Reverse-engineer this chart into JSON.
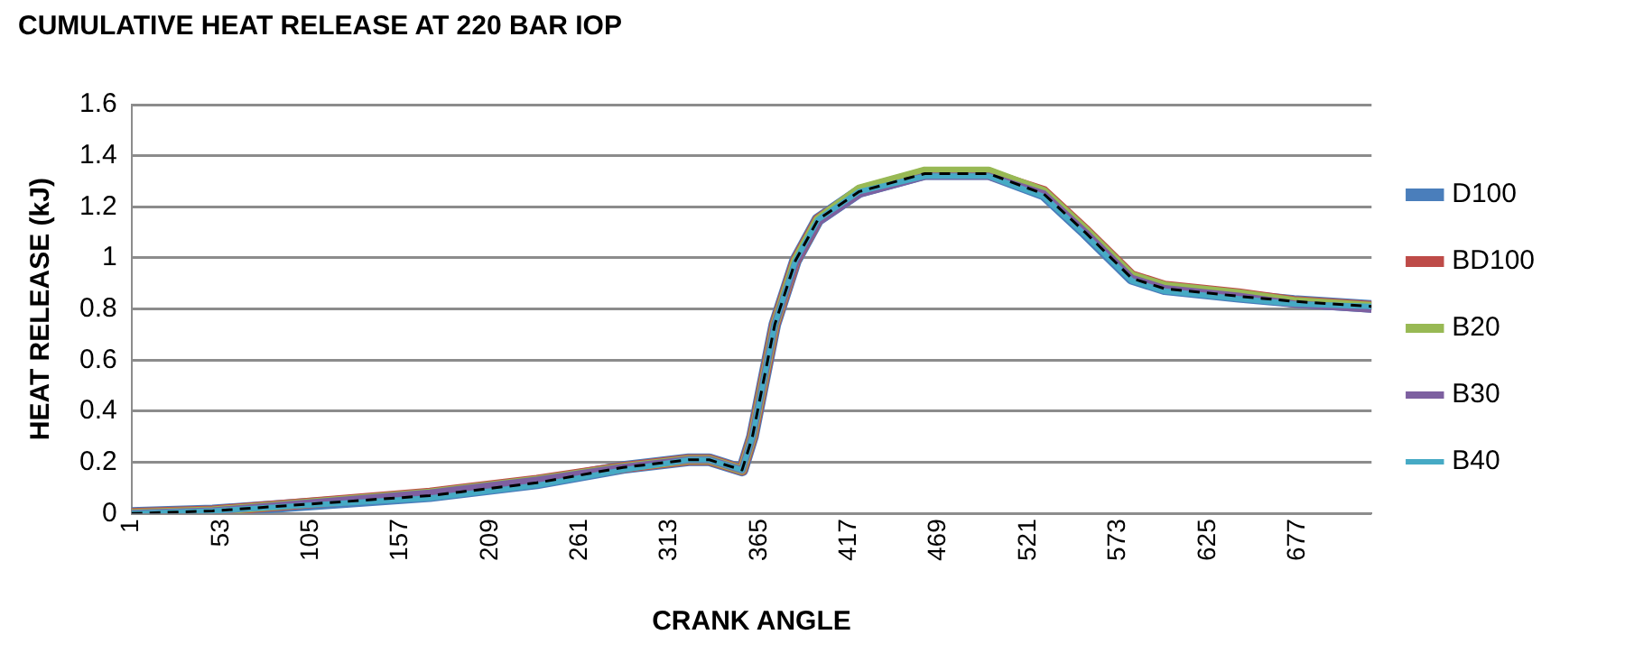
{
  "chart_data": {
    "type": "line",
    "title": "CUMULATIVE HEAT RELEASE AT 220 BAR IOP",
    "xlabel": "CRANK ANGLE",
    "ylabel": "HEAT RELEASE (kJ)",
    "x": [
      1,
      48,
      174,
      236,
      286,
      324,
      336,
      355,
      361,
      374,
      386,
      399,
      423,
      461,
      498,
      530,
      554,
      581,
      600,
      643,
      675,
      720
    ],
    "xlim": [
      1,
      720
    ],
    "xticks": [
      1,
      53,
      105,
      157,
      209,
      261,
      313,
      365,
      417,
      469,
      521,
      573,
      625,
      677
    ],
    "ylim": [
      0,
      1.6
    ],
    "yticks": [
      0,
      0.2,
      0.4,
      0.6,
      0.8,
      1,
      1.2,
      1.4,
      1.6
    ],
    "grid": "y",
    "legend": "right",
    "marker": "none",
    "series": [
      {
        "name": "D100",
        "color": "#4a7ebb",
        "values": [
          0,
          0.01,
          0.07,
          0.12,
          0.18,
          0.21,
          0.21,
          0.17,
          0.3,
          0.74,
          0.99,
          1.15,
          1.26,
          1.33,
          1.33,
          1.25,
          1.1,
          0.92,
          0.88,
          0.85,
          0.83,
          0.81
        ]
      },
      {
        "name": "BD100",
        "color": "#be4b48",
        "values": [
          0,
          0.01,
          0.08,
          0.13,
          0.18,
          0.21,
          0.21,
          0.17,
          0.3,
          0.74,
          0.99,
          1.15,
          1.26,
          1.33,
          1.33,
          1.26,
          1.11,
          0.93,
          0.89,
          0.86,
          0.83,
          0.81
        ]
      },
      {
        "name": "B20",
        "color": "#98b954",
        "values": [
          0,
          0.01,
          0.08,
          0.13,
          0.18,
          0.21,
          0.21,
          0.17,
          0.3,
          0.74,
          0.99,
          1.15,
          1.27,
          1.34,
          1.34,
          1.26,
          1.11,
          0.93,
          0.89,
          0.86,
          0.83,
          0.81
        ]
      },
      {
        "name": "B30",
        "color": "#7d60a0",
        "values": [
          0,
          0.01,
          0.08,
          0.13,
          0.18,
          0.21,
          0.21,
          0.17,
          0.3,
          0.74,
          0.98,
          1.14,
          1.25,
          1.32,
          1.32,
          1.25,
          1.1,
          0.92,
          0.88,
          0.85,
          0.82,
          0.8
        ]
      },
      {
        "name": "B40",
        "color": "#46aac5",
        "values": [
          0,
          0.01,
          0.06,
          0.11,
          0.17,
          0.21,
          0.21,
          0.17,
          0.3,
          0.74,
          0.99,
          1.15,
          1.26,
          1.32,
          1.32,
          1.24,
          1.09,
          0.91,
          0.87,
          0.84,
          0.82,
          0.81
        ]
      },
      {
        "color": "#000000",
        "line_style": "dashed",
        "values": [
          0,
          0.01,
          0.07,
          0.12,
          0.18,
          0.21,
          0.21,
          0.17,
          0.3,
          0.74,
          0.99,
          1.15,
          1.26,
          1.33,
          1.33,
          1.25,
          1.1,
          0.92,
          0.88,
          0.85,
          0.83,
          0.81
        ]
      }
    ]
  }
}
